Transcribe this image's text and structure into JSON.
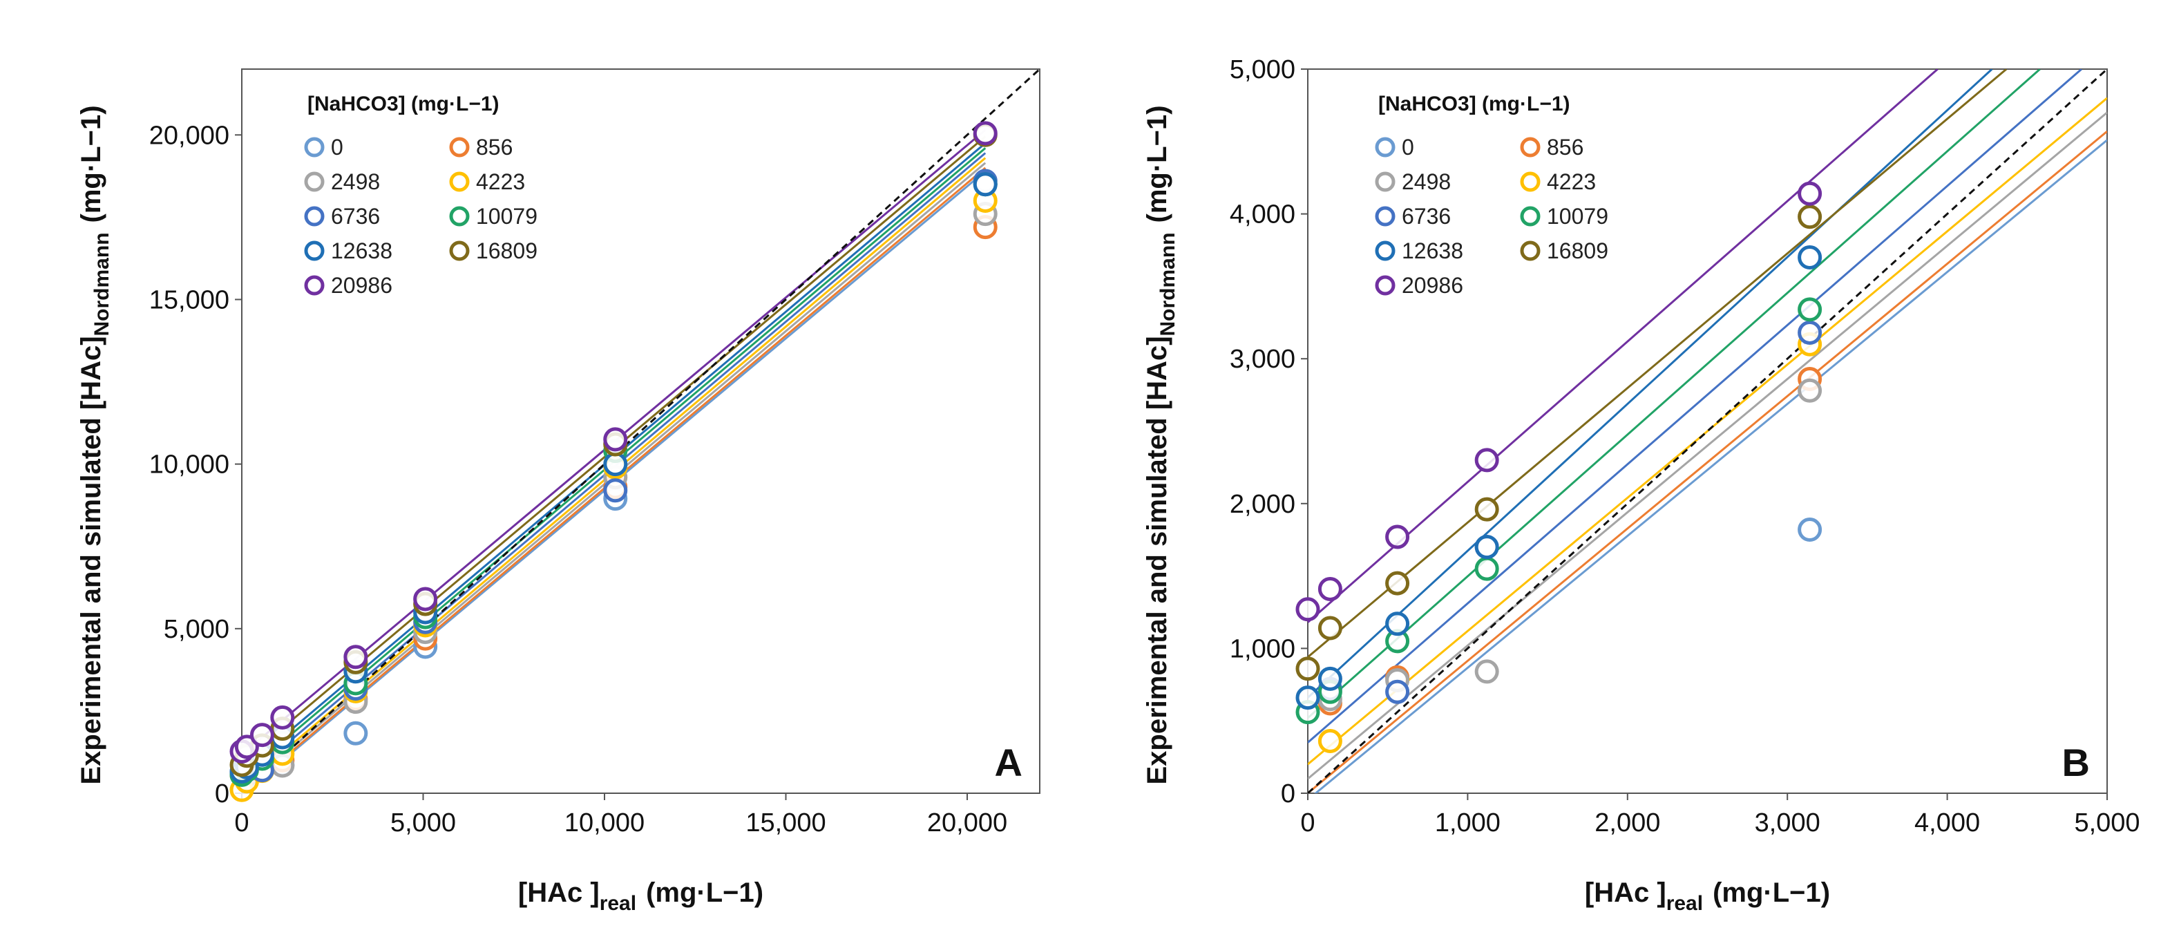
{
  "legend": {
    "title": "[NaHCO3] (mg·L−1)"
  },
  "axis_labels": {
    "y_main": "Experimental and simulated [HAc]",
    "y_sub": "Nordmann",
    "y_unit": "(mg·L−1)",
    "x_main": "[HAc ]",
    "x_sub": "real",
    "x_unit": "(mg·L−1)"
  },
  "series_styles": [
    {
      "name": "0",
      "color": "#6a9bd1"
    },
    {
      "name": "856",
      "color": "#ed7d31"
    },
    {
      "name": "2498",
      "color": "#a5a5a5"
    },
    {
      "name": "4223",
      "color": "#ffc000"
    },
    {
      "name": "6736",
      "color": "#4472c4"
    },
    {
      "name": "10079",
      "color": "#21a366"
    },
    {
      "name": "12638",
      "color": "#1f6fb5"
    },
    {
      "name": "16809",
      "color": "#7f6a1a"
    },
    {
      "name": "20986",
      "color": "#7030a0"
    }
  ],
  "chart_data": [
    {
      "panel": "A",
      "type": "scatter",
      "title": "",
      "xlabel": "[HAc ]real (mg·L−1)",
      "ylabel": "Experimental and simulated [HAc]Nordmann (mg·L−1)",
      "xlim": [
        0,
        22000
      ],
      "ylim": [
        0,
        22000
      ],
      "xticks": [
        "0",
        "5,000",
        "10,000",
        "15,000",
        "20,000"
      ],
      "yticks": [
        "0",
        "5,000",
        "10,000",
        "15,000",
        "20,000"
      ],
      "grid": false,
      "legend_position": "top-left",
      "reference_line": "y = x (dashed)",
      "series": [
        {
          "name": "0",
          "points": [
            [
              0,
              560
            ],
            [
              140,
              600
            ],
            [
              560,
              700
            ],
            [
              1120,
              860
            ],
            [
              3140,
              1820
            ],
            [
              5060,
              4450
            ],
            [
              10300,
              8950
            ],
            [
              20500,
              18500
            ]
          ],
          "fit": [
            [
              0,
              -45
            ],
            [
              20500,
              18900
            ]
          ]
        },
        {
          "name": "856",
          "points": [
            [
              0,
              560
            ],
            [
              140,
              620
            ],
            [
              560,
              800
            ],
            [
              1120,
              1000
            ],
            [
              3140,
              2860
            ],
            [
              5060,
              4700
            ],
            [
              10300,
              9300
            ],
            [
              20500,
              17200
            ]
          ],
          "fit": [
            [
              0,
              0
            ],
            [
              20500,
              19000
            ]
          ]
        },
        {
          "name": "2498",
          "points": [
            [
              0,
              600
            ],
            [
              140,
              650
            ],
            [
              560,
              780
            ],
            [
              1120,
              840
            ],
            [
              3140,
              2780
            ],
            [
              5060,
              4900
            ],
            [
              10300,
              9600
            ],
            [
              20500,
              17600
            ]
          ],
          "fit": [
            [
              0,
              100
            ],
            [
              20500,
              19150
            ]
          ]
        },
        {
          "name": "4223",
          "points": [
            [
              0,
              100
            ],
            [
              140,
              360
            ],
            [
              560,
              680
            ],
            [
              1120,
              1200
            ],
            [
              3140,
              3100
            ],
            [
              5060,
              5100
            ],
            [
              10300,
              9900
            ],
            [
              20500,
              18000
            ]
          ],
          "fit": [
            [
              0,
              200
            ],
            [
              20500,
              19300
            ]
          ]
        },
        {
          "name": "6736",
          "points": [
            [
              0,
              640
            ],
            [
              140,
              720
            ],
            [
              560,
              700
            ],
            [
              1120,
              1700
            ],
            [
              3140,
              3180
            ],
            [
              5060,
              5200
            ],
            [
              10300,
              9200
            ],
            [
              20500,
              18600
            ]
          ],
          "fit": [
            [
              0,
              350
            ],
            [
              20500,
              19450
            ]
          ]
        },
        {
          "name": "10079",
          "points": [
            [
              0,
              560
            ],
            [
              140,
              700
            ],
            [
              560,
              1050
            ],
            [
              1120,
              1550
            ],
            [
              3140,
              3340
            ],
            [
              5060,
              5350
            ],
            [
              10300,
              10400
            ],
            [
              20500,
              18500
            ]
          ],
          "fit": [
            [
              0,
              520
            ],
            [
              20500,
              19600
            ]
          ]
        },
        {
          "name": "12638",
          "points": [
            [
              0,
              660
            ],
            [
              140,
              790
            ],
            [
              560,
              1170
            ],
            [
              1120,
              1700
            ],
            [
              3140,
              3700
            ],
            [
              5060,
              5500
            ],
            [
              10300,
              10000
            ],
            [
              20500,
              18500
            ]
          ],
          "fit": [
            [
              0,
              660
            ],
            [
              20500,
              19750
            ]
          ]
        },
        {
          "name": "16809",
          "points": [
            [
              0,
              860
            ],
            [
              140,
              1140
            ],
            [
              560,
              1450
            ],
            [
              1120,
              1960
            ],
            [
              3140,
              3980
            ],
            [
              5060,
              5750
            ],
            [
              10300,
              10600
            ],
            [
              20500,
              20000
            ]
          ],
          "fit": [
            [
              0,
              940
            ],
            [
              20500,
              19950
            ]
          ]
        },
        {
          "name": "20986",
          "points": [
            [
              0,
              1270
            ],
            [
              140,
              1410
            ],
            [
              560,
              1770
            ],
            [
              1120,
              2300
            ],
            [
              3140,
              4140
            ],
            [
              5060,
              5900
            ],
            [
              10300,
              10750
            ],
            [
              20500,
              20050
            ]
          ],
          "fit": [
            [
              0,
              1180
            ],
            [
              20500,
              20150
            ]
          ]
        }
      ],
      "panel_label": "A"
    },
    {
      "panel": "B",
      "type": "scatter",
      "title": "",
      "xlabel": "[HAc ]real (mg·L−1)",
      "ylabel": "Experimental and simulated [HAc]Nordmann (mg·L−1)",
      "xlim": [
        0,
        5000
      ],
      "ylim": [
        0,
        5000
      ],
      "xticks": [
        "0",
        "1,000",
        "2,000",
        "3,000",
        "4,000",
        "5,000"
      ],
      "yticks": [
        "0",
        "1,000",
        "2,000",
        "3,000",
        "4,000",
        "5,000"
      ],
      "grid": false,
      "legend_position": "top-left",
      "reference_line": "y = x (dashed)",
      "series": [
        {
          "name": "0",
          "points": [
            [
              3140,
              1820
            ]
          ],
          "fit": [
            [
              0,
              -45
            ],
            [
              5000,
              4510
            ]
          ]
        },
        {
          "name": "856",
          "points": [
            [
              140,
              620
            ],
            [
              560,
              800
            ],
            [
              3140,
              2860
            ]
          ],
          "fit": [
            [
              0,
              0
            ],
            [
              5000,
              4570
            ]
          ]
        },
        {
          "name": "2498",
          "points": [
            [
              140,
              650
            ],
            [
              560,
              780
            ],
            [
              1120,
              840
            ],
            [
              3140,
              2780
            ]
          ],
          "fit": [
            [
              0,
              100
            ],
            [
              5000,
              4700
            ]
          ]
        },
        {
          "name": "4223",
          "points": [
            [
              140,
              360
            ],
            [
              3140,
              3100
            ]
          ],
          "fit": [
            [
              0,
              200
            ],
            [
              5000,
              4800
            ]
          ]
        },
        {
          "name": "6736",
          "points": [
            [
              140,
              720
            ],
            [
              560,
              700
            ],
            [
              1120,
              1700
            ],
            [
              3140,
              3180
            ]
          ],
          "fit": [
            [
              0,
              350
            ],
            [
              4840,
              5000
            ]
          ]
        },
        {
          "name": "10079",
          "points": [
            [
              0,
              560
            ],
            [
              140,
              700
            ],
            [
              560,
              1050
            ],
            [
              1120,
              1550
            ],
            [
              3140,
              3340
            ]
          ],
          "fit": [
            [
              0,
              520
            ],
            [
              4580,
              5000
            ]
          ]
        },
        {
          "name": "12638",
          "points": [
            [
              0,
              660
            ],
            [
              140,
              790
            ],
            [
              560,
              1170
            ],
            [
              1120,
              1700
            ],
            [
              3140,
              3700
            ]
          ],
          "fit": [
            [
              0,
              660
            ],
            [
              4280,
              5000
            ]
          ]
        },
        {
          "name": "16809",
          "points": [
            [
              0,
              860
            ],
            [
              140,
              1140
            ],
            [
              560,
              1450
            ],
            [
              1120,
              1960
            ],
            [
              3140,
              3980
            ]
          ],
          "fit": [
            [
              0,
              940
            ],
            [
              4370,
              5000
            ]
          ]
        },
        {
          "name": "20986",
          "points": [
            [
              0,
              1270
            ],
            [
              140,
              1410
            ],
            [
              560,
              1770
            ],
            [
              1120,
              2300
            ],
            [
              3140,
              4140
            ]
          ],
          "fit": [
            [
              0,
              1180
            ],
            [
              3940,
              5000
            ]
          ]
        }
      ],
      "panel_label": "B"
    }
  ]
}
